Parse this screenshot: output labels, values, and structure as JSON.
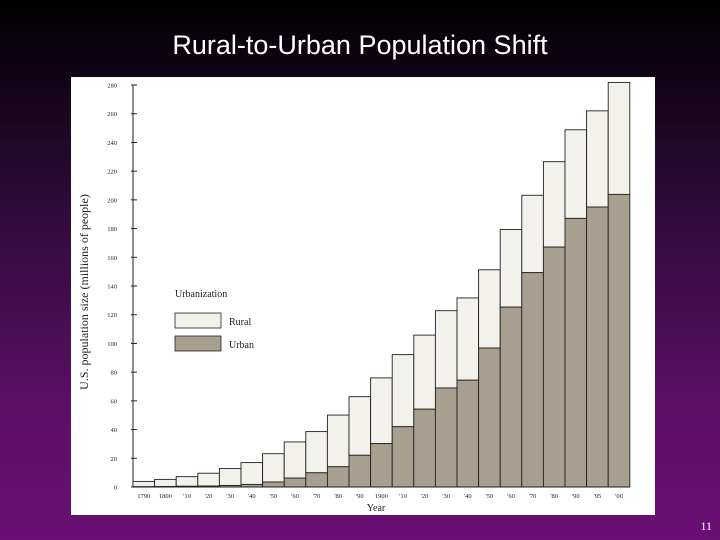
{
  "slide": {
    "title": "Rural-to-Urban Population Shift",
    "page_number": "11"
  },
  "chart_data": {
    "type": "bar",
    "stacked": true,
    "categories": [
      "1790",
      "1800",
      "'10",
      "'20",
      "'30",
      "'40",
      "'50",
      "'60",
      "'70",
      "'80",
      "'90",
      "1900",
      "'10",
      "'20",
      "'30",
      "'40",
      "'50",
      "'60",
      "'70",
      "'80",
      "'90",
      "'95",
      "'00"
    ],
    "series": [
      {
        "name": "Urban",
        "values": [
          0.2,
          0.3,
          0.5,
          0.7,
          1.1,
          1.8,
          3.5,
          6.2,
          9.9,
          14.1,
          22.1,
          30.2,
          42.0,
          54.2,
          69.0,
          74.4,
          96.8,
          125.3,
          149.3,
          167.1,
          187.1,
          195.0,
          203.8
        ]
      },
      {
        "name": "Rural",
        "values": [
          3.7,
          5.0,
          6.7,
          8.9,
          11.8,
          15.2,
          19.7,
          25.2,
          28.7,
          36.0,
          40.8,
          45.8,
          50.2,
          51.6,
          53.8,
          57.3,
          54.5,
          54.1,
          53.9,
          59.5,
          61.7,
          67.0,
          78.0
        ]
      }
    ],
    "ylabel": "U.S. population size (millions of people)",
    "xlabel": "Year",
    "ylim": [
      0,
      280
    ],
    "yticks": [
      0,
      20,
      40,
      60,
      80,
      100,
      120,
      140,
      160,
      180,
      200,
      220,
      240,
      260,
      280
    ],
    "legend": {
      "title": "Urbanization",
      "position": "left",
      "items": [
        "Rural",
        "Urban"
      ]
    },
    "colors": {
      "Urban": "#a99f8f",
      "Rural": "#f3f1ec",
      "stroke": "#222222"
    },
    "grid": false
  }
}
